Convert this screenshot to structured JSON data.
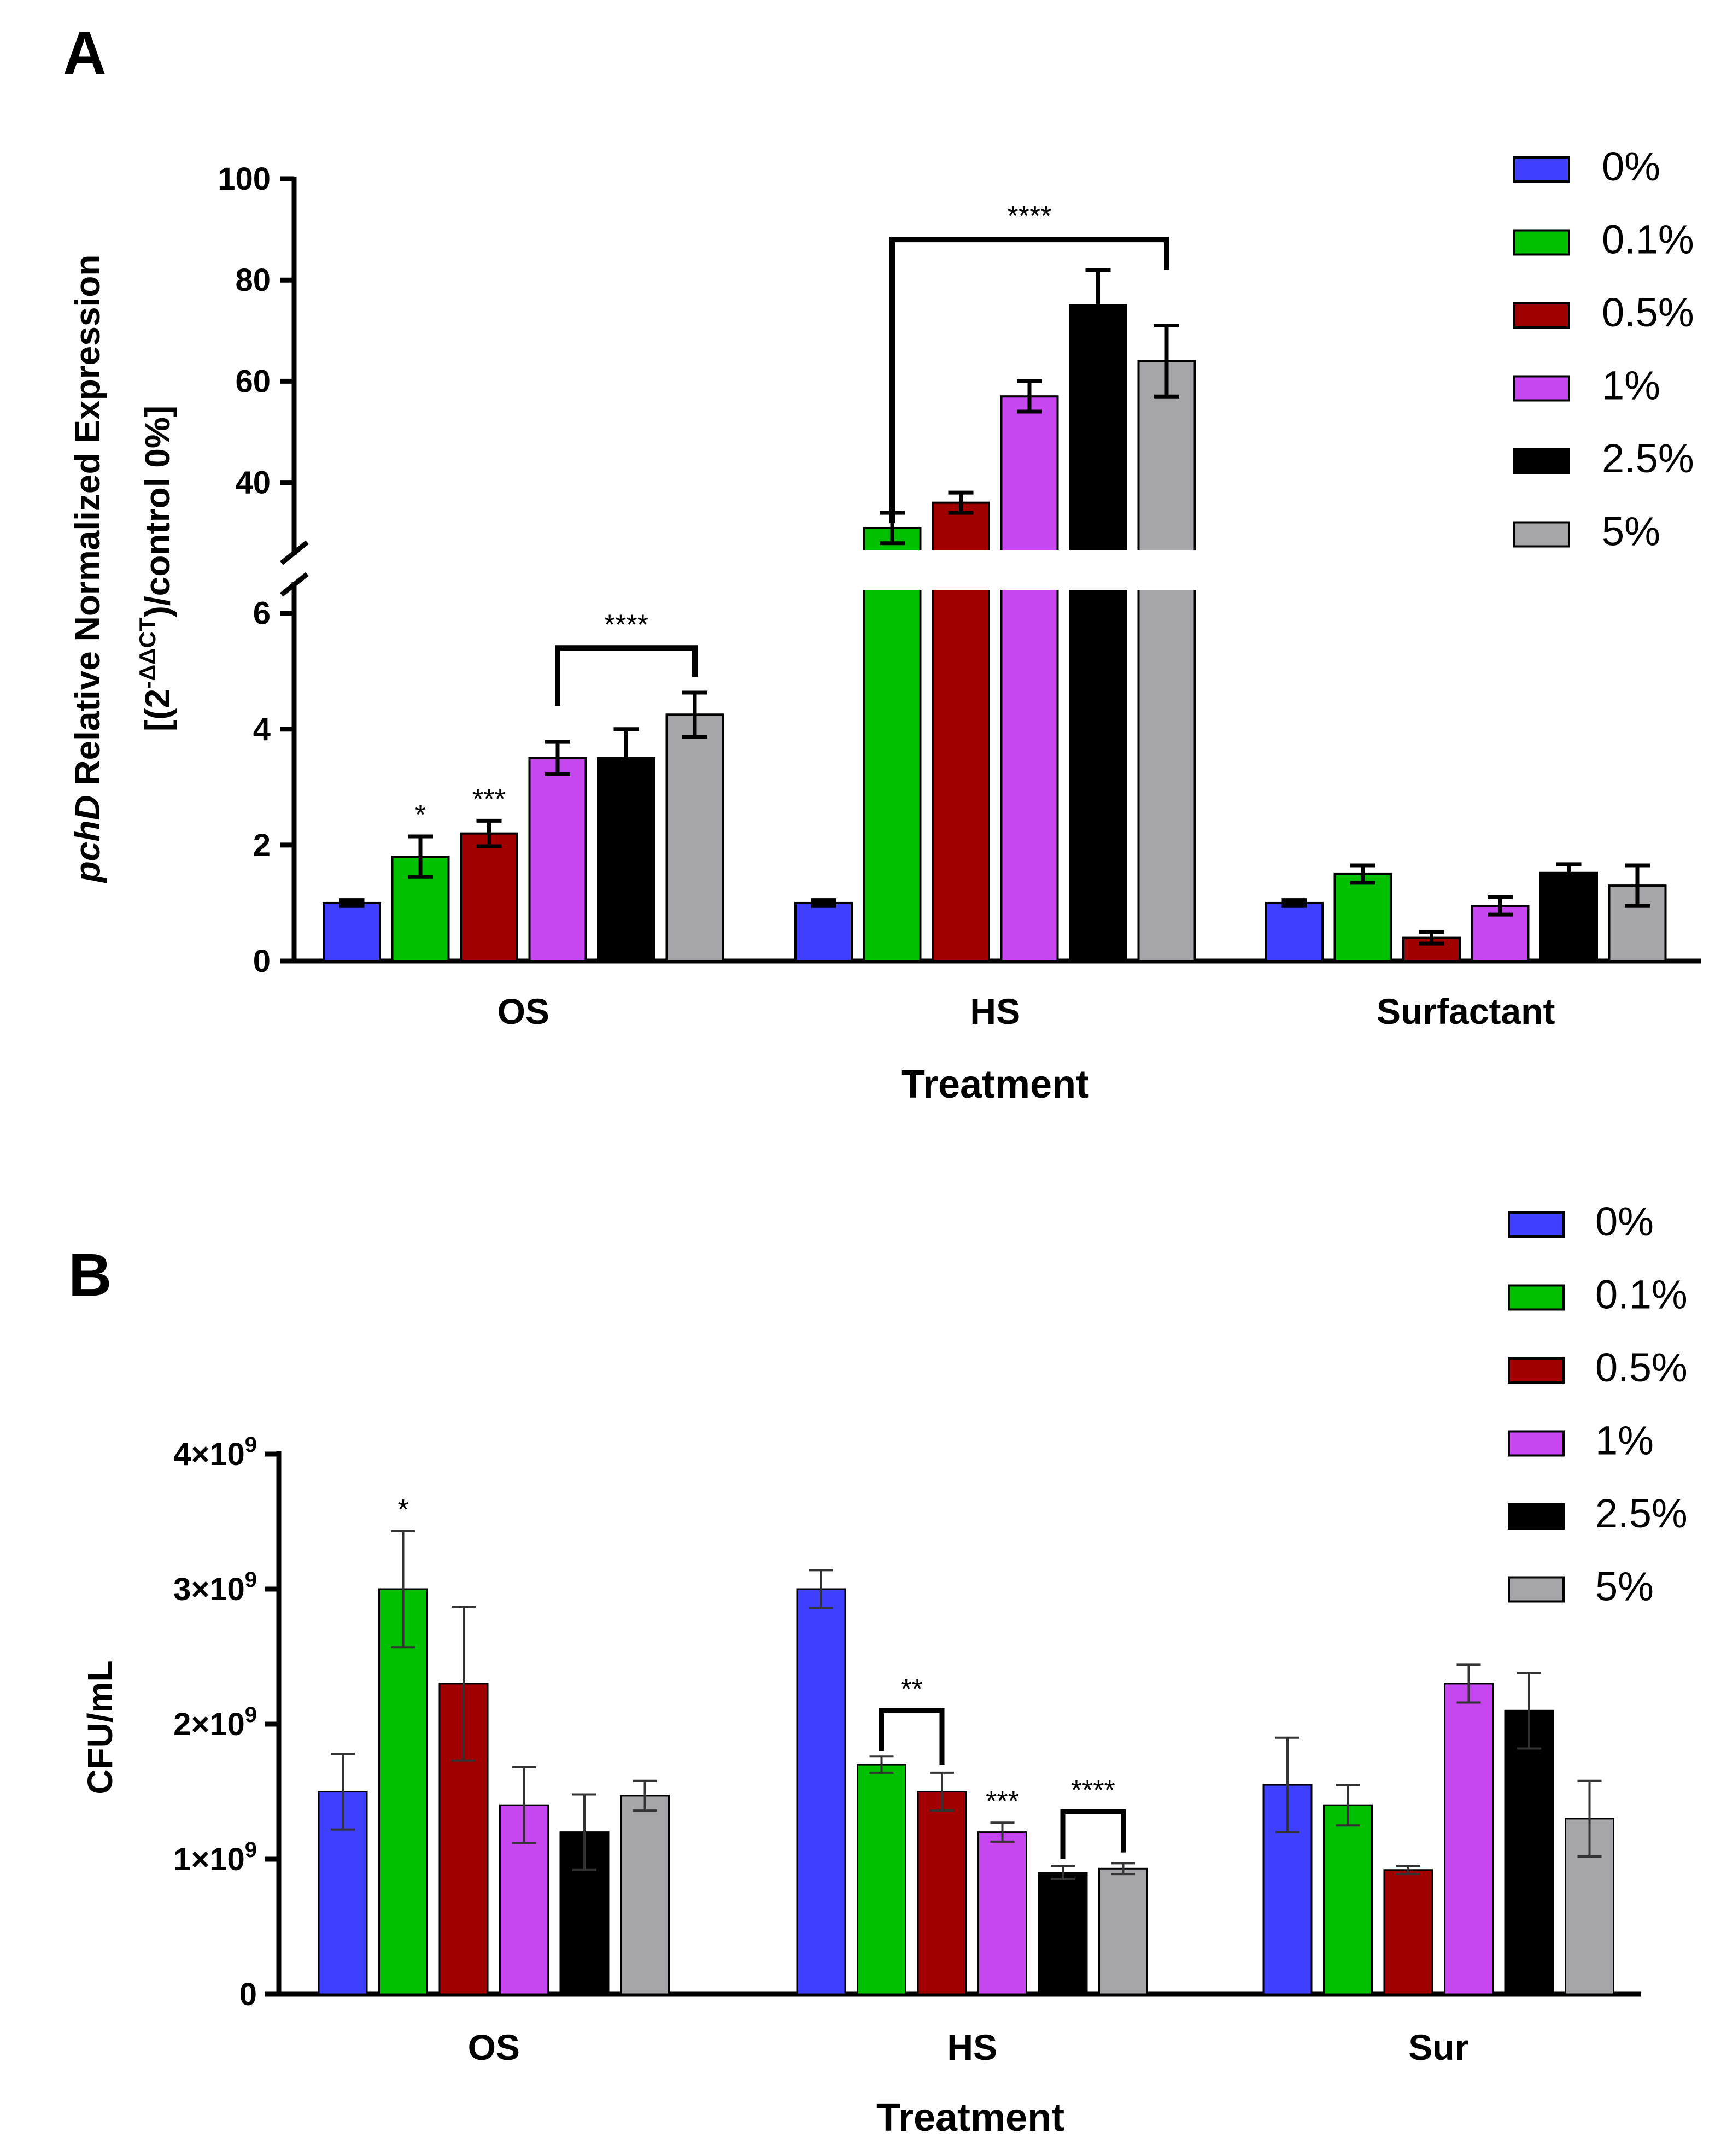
{
  "chart_data": [
    {
      "panel": "A",
      "type": "bar",
      "title": "",
      "xlabel": "Treatment",
      "ylabel": {
        "prefix_italic": "pchD",
        "line1_rest": " Relative Normalized Expression",
        "line2_a": "[(2",
        "line2_sup": "-ΔΔCT",
        "line2_b": ")/control 0%]"
      },
      "categories": [
        "OS",
        "HS",
        "Surfactant"
      ],
      "y_axis_broken": true,
      "lower_segment": {
        "ylim": [
          0,
          6.6
        ],
        "ticks": [
          "0",
          "2",
          "4",
          "6"
        ]
      },
      "upper_segment": {
        "ylim": [
          27,
          100
        ],
        "ticks": [
          "40",
          "60",
          "80",
          "100"
        ]
      },
      "series": [
        {
          "name": "0%",
          "color": "#3f3fff",
          "values": [
            1.0,
            1.0,
            1.0
          ],
          "errors": [
            0.05,
            0.05,
            0.05
          ]
        },
        {
          "name": "0.1%",
          "color": "#00c000",
          "values": [
            1.8,
            31,
            1.5
          ],
          "errors": [
            0.35,
            3,
            0.15
          ]
        },
        {
          "name": "0.5%",
          "color": "#a00000",
          "values": [
            2.2,
            36,
            0.4
          ],
          "errors": [
            0.22,
            2,
            0.1
          ]
        },
        {
          "name": "1%",
          "color": "#c646ef",
          "values": [
            3.5,
            57,
            0.95
          ],
          "errors": [
            0.28,
            3,
            0.15
          ]
        },
        {
          "name": "2.5%",
          "color": "#000000",
          "values": [
            3.5,
            75,
            1.52
          ],
          "errors": [
            0.5,
            7,
            0.15
          ]
        },
        {
          "name": "5%",
          "color": "#a6a6aa",
          "values": [
            4.25,
            64,
            1.3
          ],
          "errors": [
            0.38,
            7,
            0.35
          ]
        }
      ],
      "annotations": [
        {
          "label": "*",
          "category": 0,
          "series": 1
        },
        {
          "label": "***",
          "category": 0,
          "series": 2
        },
        {
          "label": "****",
          "type": "bracket",
          "category": 0,
          "from_series": 3,
          "to_series": 5,
          "y": 5.4,
          "left_end": 4.4,
          "right_end": 4.9
        },
        {
          "label": "****",
          "type": "bracket",
          "category": 1,
          "from_series": 1,
          "to_series": 5,
          "y": 88,
          "left_end": 32,
          "right_end": 82
        }
      ]
    },
    {
      "panel": "B",
      "type": "bar",
      "title": "",
      "xlabel": "Treatment",
      "ylabel": "CFU/mL",
      "categories": [
        "OS",
        "HS",
        "Sur"
      ],
      "ylim": [
        0,
        4000000000
      ],
      "ticks": [
        {
          "value": 0,
          "mantissa": "0",
          "exp": ""
        },
        {
          "value": 1000000000,
          "mantissa": "1×10",
          "exp": "9"
        },
        {
          "value": 2000000000,
          "mantissa": "2×10",
          "exp": "9"
        },
        {
          "value": 3000000000,
          "mantissa": "3×10",
          "exp": "9"
        },
        {
          "value": 4000000000,
          "mantissa": "4×10",
          "exp": "9"
        }
      ],
      "series": [
        {
          "name": "0%",
          "color": "#3f3fff",
          "values": [
            1500000000,
            3000000000,
            1550000000
          ],
          "errors": [
            280000000,
            140000000,
            350000000
          ]
        },
        {
          "name": "0.1%",
          "color": "#00c000",
          "values": [
            3000000000,
            1700000000,
            1400000000
          ],
          "errors": [
            430000000,
            60000000,
            150000000
          ]
        },
        {
          "name": "0.5%",
          "color": "#a00000",
          "values": [
            2300000000,
            1500000000,
            920000000
          ],
          "errors": [
            570000000,
            140000000,
            30000000
          ]
        },
        {
          "name": "1%",
          "color": "#c646ef",
          "values": [
            1400000000,
            1200000000,
            2300000000
          ],
          "errors": [
            280000000,
            70000000,
            140000000
          ]
        },
        {
          "name": "2.5%",
          "color": "#000000",
          "values": [
            1200000000,
            900000000,
            2100000000
          ],
          "errors": [
            280000000,
            50000000,
            280000000
          ]
        },
        {
          "name": "5%",
          "color": "#a6a6aa",
          "values": [
            1470000000,
            930000000,
            1300000000
          ],
          "errors": [
            110000000,
            40000000,
            280000000
          ]
        }
      ],
      "annotations": [
        {
          "label": "*",
          "category": 0,
          "series": 1
        },
        {
          "label": "**",
          "type": "bracket",
          "category": 1,
          "from_series": 1,
          "to_series": 2,
          "y": 2100000000,
          "left_end": 1800000000,
          "right_end": 1700000000
        },
        {
          "label": "***",
          "category": 1,
          "series": 3
        },
        {
          "label": "****",
          "type": "bracket",
          "category": 1,
          "from_series": 4,
          "to_series": 5,
          "y": 1350000000,
          "left_end": 1000000000,
          "right_end": 1050000000
        }
      ]
    }
  ]
}
